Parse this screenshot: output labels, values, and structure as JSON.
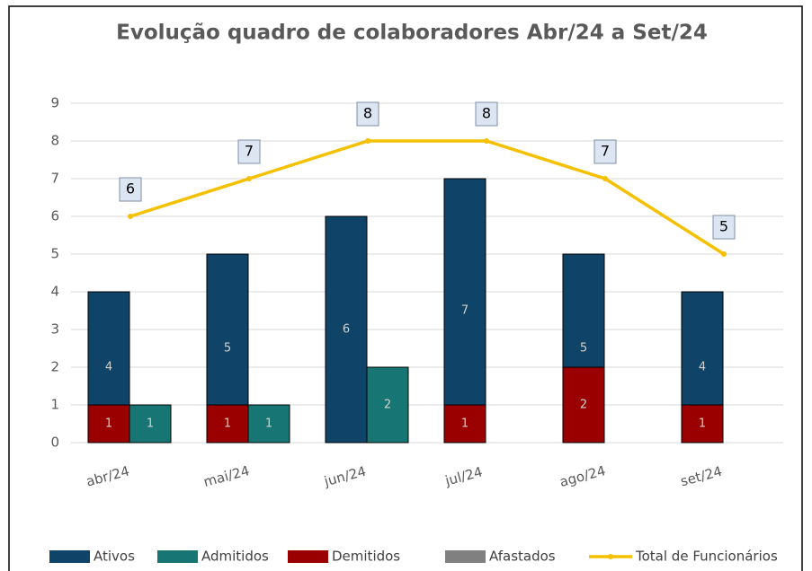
{
  "chart_data": {
    "type": "bar",
    "title": "Evolução quadro de colaboradores Abr/24 a Set/24",
    "categories": [
      "abr/24",
      "mai/24",
      "jun/24",
      "jul/24",
      "ago/24",
      "set/24"
    ],
    "series": [
      {
        "name": "Ativos",
        "type": "bar",
        "color": "#0f4468",
        "values": [
          4,
          5,
          6,
          7,
          5,
          4
        ]
      },
      {
        "name": "Admitidos",
        "type": "bar",
        "color": "#177674",
        "values": [
          1,
          1,
          2,
          null,
          null,
          null
        ]
      },
      {
        "name": "Demitidos",
        "type": "bar",
        "color": "#9a0000",
        "values": [
          1,
          1,
          null,
          1,
          2,
          1
        ]
      },
      {
        "name": "Afastados",
        "type": "bar",
        "color": "#808080",
        "values": [
          null,
          null,
          null,
          null,
          null,
          null
        ]
      },
      {
        "name": "Total de Funcionários",
        "type": "line",
        "color": "#f5c000",
        "values": [
          6,
          7,
          8,
          8,
          7,
          5
        ]
      }
    ],
    "ylim": [
      0,
      9
    ],
    "yticks": [
      0,
      1,
      2,
      3,
      4,
      5,
      6,
      7,
      8,
      9
    ],
    "grid": true,
    "legend": "bottom"
  }
}
